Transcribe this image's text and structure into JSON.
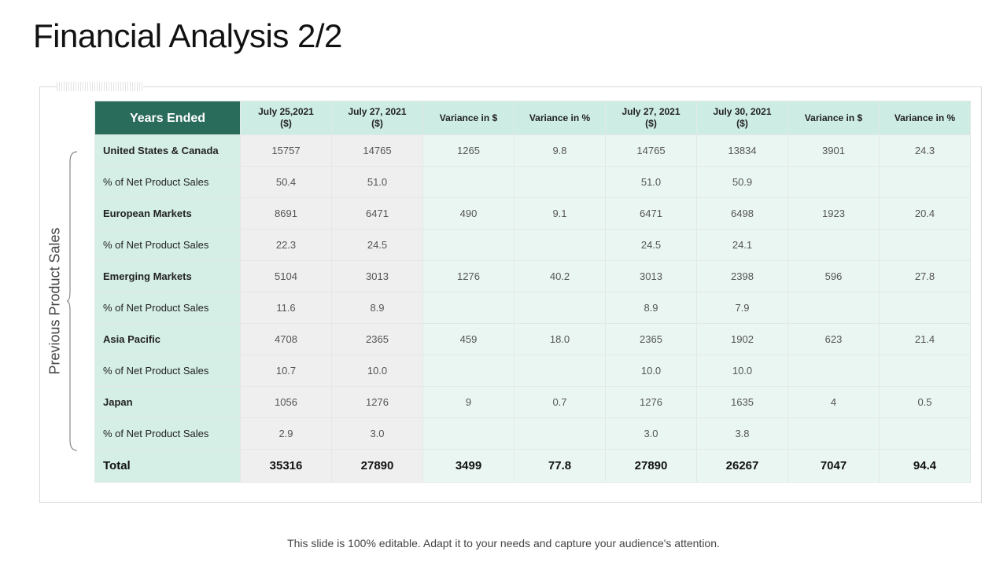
{
  "title": "Financial Analysis 2/2",
  "side_label": "Previous Product Sales",
  "table": {
    "corner": "Years Ended",
    "headers": [
      [
        "July 25,2021",
        "($)"
      ],
      [
        "July 27, 2021",
        "($)"
      ],
      [
        "Variance in $",
        ""
      ],
      [
        "Variance in %",
        ""
      ],
      [
        "July 27, 2021",
        "($)"
      ],
      [
        "July 30, 2021",
        "($)"
      ],
      [
        "Variance in $",
        ""
      ],
      [
        "Variance in %",
        ""
      ]
    ],
    "rows": [
      {
        "label": "United States & Canada",
        "bold": true,
        "cells": [
          "15757",
          "14765",
          "1265",
          "9.8",
          "14765",
          "13834",
          "3901",
          "24.3"
        ]
      },
      {
        "label": "% of Net Product Sales",
        "bold": false,
        "cells": [
          "50.4",
          "51.0",
          "",
          "",
          "51.0",
          "50.9",
          "",
          ""
        ]
      },
      {
        "label": "European Markets",
        "bold": true,
        "cells": [
          "8691",
          "6471",
          "490",
          "9.1",
          "6471",
          "6498",
          "1923",
          "20.4"
        ]
      },
      {
        "label": "% of Net Product Sales",
        "bold": false,
        "cells": [
          "22.3",
          "24.5",
          "",
          "",
          "24.5",
          "24.1",
          "",
          ""
        ]
      },
      {
        "label": "Emerging Markets",
        "bold": true,
        "cells": [
          "5104",
          "3013",
          "1276",
          "40.2",
          "3013",
          "2398",
          "596",
          "27.8"
        ]
      },
      {
        "label": "% of Net Product Sales",
        "bold": false,
        "cells": [
          "11.6",
          "8.9",
          "",
          "",
          "8.9",
          "7.9",
          "",
          ""
        ]
      },
      {
        "label": "Asia Pacific",
        "bold": true,
        "cells": [
          "4708",
          "2365",
          "459",
          "18.0",
          "2365",
          "1902",
          "623",
          "21.4"
        ]
      },
      {
        "label": "% of Net Product Sales",
        "bold": false,
        "cells": [
          "10.7",
          "10.0",
          "",
          "",
          "10.0",
          "10.0",
          "",
          ""
        ]
      },
      {
        "label": "Japan",
        "bold": true,
        "cells": [
          "1056",
          "1276",
          "9",
          "0.7",
          "1276",
          "1635",
          "4",
          "0.5"
        ]
      },
      {
        "label": "% of Net Product Sales",
        "bold": false,
        "cells": [
          "2.9",
          "3.0",
          "",
          "",
          "3.0",
          "3.8",
          "",
          ""
        ]
      }
    ],
    "total": {
      "label": "Total",
      "cells": [
        "35316",
        "27890",
        "3499",
        "77.8",
        "27890",
        "26267",
        "7047",
        "94.4"
      ]
    }
  },
  "footer": "This slide is 100% editable. Adapt it to your needs and capture your audience's attention.",
  "colors": {
    "header_dark": "#2a6c5c",
    "header_light": "#cdece4",
    "label_cell": "#d5efe7",
    "grey_cell": "#efefef",
    "light_cell": "#eaf6f2"
  }
}
